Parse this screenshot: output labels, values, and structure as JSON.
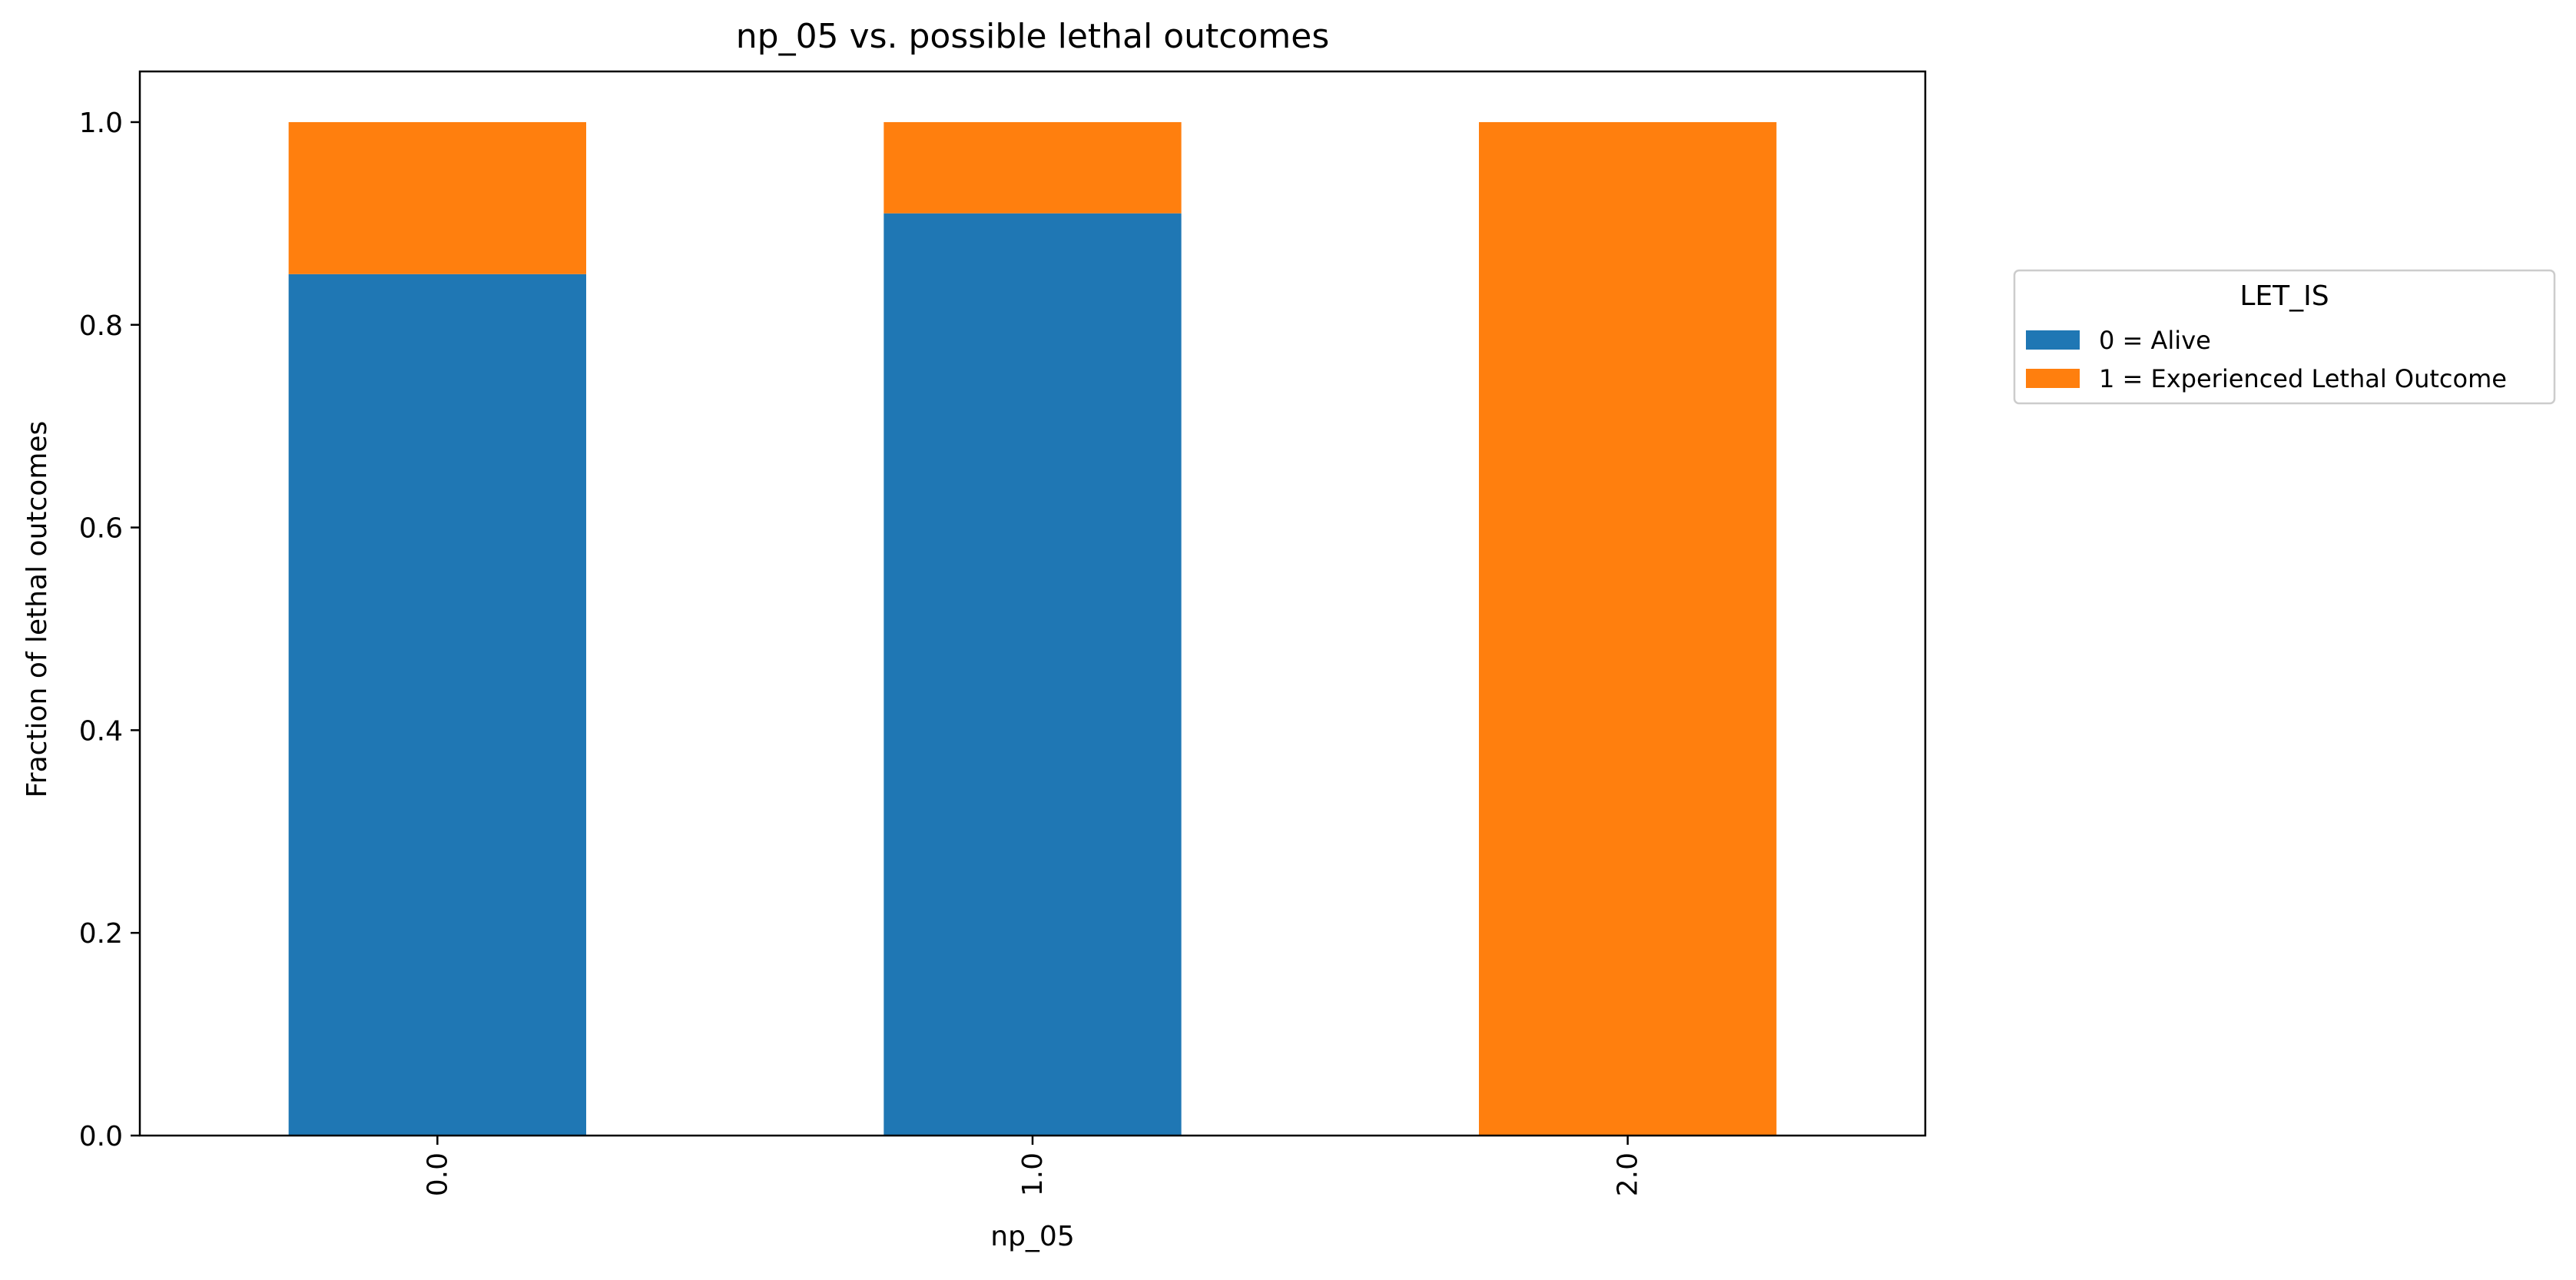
{
  "chart_data": {
    "type": "bar",
    "stacked": true,
    "title": "np_05 vs. possible lethal outcomes",
    "xlabel": "np_05",
    "ylabel": "Fraction of lethal outcomes",
    "categories": [
      "0.0",
      "1.0",
      "2.0"
    ],
    "series": [
      {
        "name": "0 = Alive",
        "values": [
          0.85,
          0.91,
          0.0
        ],
        "color": "#1f77b4"
      },
      {
        "name": "1 = Experienced Lethal Outcome",
        "values": [
          0.15,
          0.09,
          1.0
        ],
        "color": "#ff7f0e"
      }
    ],
    "ylim": [
      0,
      1.05
    ],
    "yticks": [
      "0.0",
      "0.2",
      "0.4",
      "0.6",
      "0.8",
      "1.0"
    ],
    "ytick_values": [
      0,
      0.2,
      0.4,
      0.6,
      0.8,
      1.0
    ],
    "legend": {
      "title": "LET_IS",
      "placement": "outside-right"
    },
    "grid": false
  }
}
